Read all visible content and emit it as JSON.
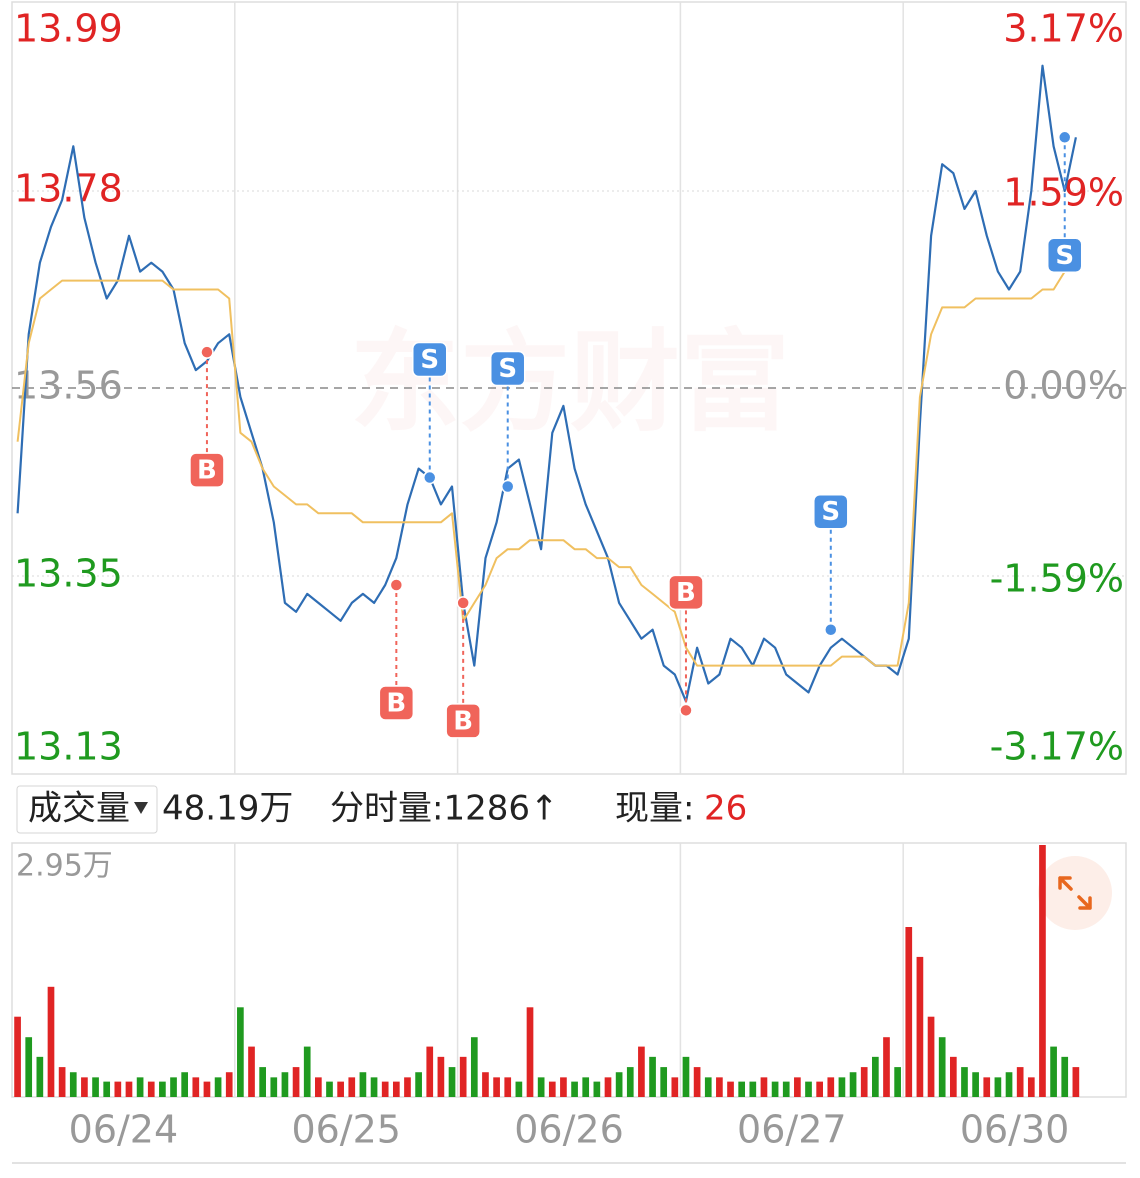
{
  "chart_data": [
    {
      "type": "line",
      "watermark": "东方财富",
      "ylim": [
        13.13,
        13.99
      ],
      "yticks": [
        13.99,
        13.78,
        13.56,
        13.35,
        13.13
      ],
      "y2lim": [
        -3.17,
        3.17
      ],
      "y2ticks": [
        {
          "value": 3.17,
          "label": "3.17%"
        },
        {
          "value": 1.59,
          "label": "1.59%"
        },
        {
          "value": 0,
          "label": "0.00%"
        },
        {
          "value": -1.59,
          "label": "-1.59%"
        },
        {
          "value": -3.17,
          "label": "-3.17%"
        }
      ],
      "up_color": "#e02424",
      "down_color": "#1f9a1f",
      "flat_color": "#999999",
      "series": [
        {
          "color": "#2e6db4",
          "values": [
            13.42,
            13.62,
            13.7,
            13.74,
            13.77,
            13.83,
            13.75,
            13.7,
            13.66,
            13.68,
            13.73,
            13.69,
            13.7,
            13.69,
            13.67,
            13.61,
            13.58,
            13.59,
            13.61,
            13.62,
            13.55,
            13.51,
            13.47,
            13.41,
            13.32,
            13.31,
            13.33,
            13.32,
            13.31,
            13.3,
            13.32,
            13.33,
            13.32,
            13.34,
            13.37,
            13.43,
            13.47,
            13.46,
            13.43,
            13.45,
            13.32,
            13.25,
            13.37,
            13.41,
            13.47,
            13.48,
            13.43,
            13.38,
            13.51,
            13.54,
            13.47,
            13.43,
            13.4,
            13.37,
            13.32,
            13.3,
            13.28,
            13.29,
            13.25,
            13.24,
            13.21,
            13.27,
            13.23,
            13.24,
            13.28,
            13.27,
            13.25,
            13.28,
            13.27,
            13.24,
            13.23,
            13.22,
            13.25,
            13.27,
            13.28,
            13.27,
            13.26,
            13.25,
            13.25,
            13.24,
            13.28,
            13.52,
            13.73,
            13.81,
            13.8,
            13.76,
            13.78,
            13.73,
            13.69,
            13.67,
            13.69,
            13.78,
            13.92,
            13.83,
            13.78,
            13.84,
            null,
            null,
            null,
            null
          ]
        },
        {
          "color": "#f0c060",
          "values": [
            13.5,
            13.61,
            13.66,
            13.67,
            13.68,
            13.68,
            13.68,
            13.68,
            13.68,
            13.68,
            13.68,
            13.68,
            13.68,
            13.68,
            13.67,
            13.67,
            13.67,
            13.67,
            13.67,
            13.66,
            13.51,
            13.5,
            13.47,
            13.45,
            13.44,
            13.43,
            13.43,
            13.42,
            13.42,
            13.42,
            13.42,
            13.41,
            13.41,
            13.41,
            13.41,
            13.41,
            13.41,
            13.41,
            13.41,
            13.42,
            13.3,
            13.32,
            13.34,
            13.37,
            13.38,
            13.38,
            13.39,
            13.39,
            13.39,
            13.39,
            13.38,
            13.38,
            13.37,
            13.37,
            13.36,
            13.36,
            13.34,
            13.33,
            13.32,
            13.31,
            13.27,
            13.25,
            13.25,
            13.25,
            13.25,
            13.25,
            13.25,
            13.25,
            13.25,
            13.25,
            13.25,
            13.25,
            13.25,
            13.25,
            13.26,
            13.26,
            13.26,
            13.25,
            13.25,
            13.25,
            13.32,
            13.55,
            13.62,
            13.65,
            13.65,
            13.65,
            13.66,
            13.66,
            13.66,
            13.66,
            13.66,
            13.66,
            13.67,
            13.67,
            13.69,
            13.7,
            null,
            null,
            null,
            null
          ]
        }
      ],
      "annotations": [
        {
          "text": "B",
          "index": 17,
          "value": 13.6,
          "color": "#f0645a",
          "side": "below"
        },
        {
          "text": "B",
          "index": 34,
          "value": 13.34,
          "color": "#f0645a",
          "side": "below"
        },
        {
          "text": "S",
          "index": 37,
          "value": 13.46,
          "color": "#4a90e2",
          "side": "above"
        },
        {
          "text": "B",
          "index": 40,
          "value": 13.32,
          "color": "#f0645a",
          "side": "below"
        },
        {
          "text": "S",
          "index": 44,
          "value": 13.45,
          "color": "#4a90e2",
          "side": "above"
        },
        {
          "text": "B",
          "index": 60,
          "value": 13.2,
          "color": "#f0645a",
          "side": "above"
        },
        {
          "text": "S",
          "index": 73,
          "value": 13.29,
          "color": "#4a90e2",
          "side": "above"
        },
        {
          "text": "S",
          "index": 94,
          "value": 13.84,
          "color": "#4a90e2",
          "side": "below"
        }
      ]
    },
    {
      "type": "bar",
      "header": {
        "label": "成交量",
        "total": "48.19万",
        "period": "分时量:1286↑",
        "current_label": "现量:",
        "current": "26"
      },
      "day_labels": [
        "06/24",
        "06/25",
        "06/26",
        "06/27",
        "06/30"
      ],
      "ylim": [
        0,
        2.95
      ],
      "yticks": [
        {
          "value": 2.95,
          "label": "2.95万"
        }
      ],
      "values": [
        0.94,
        0.7,
        0.47,
        1.29,
        0.35,
        0.29,
        0.23,
        0.23,
        0.18,
        0.18,
        0.18,
        0.23,
        0.18,
        0.18,
        0.23,
        0.29,
        0.23,
        0.18,
        0.23,
        0.29,
        1.05,
        0.59,
        0.35,
        0.23,
        0.29,
        0.35,
        0.59,
        0.23,
        0.18,
        0.18,
        0.23,
        0.29,
        0.23,
        0.18,
        0.18,
        0.23,
        0.29,
        0.59,
        0.47,
        0.35,
        0.47,
        0.7,
        0.29,
        0.23,
        0.23,
        0.18,
        1.05,
        0.23,
        0.18,
        0.23,
        0.18,
        0.23,
        0.18,
        0.23,
        0.29,
        0.35,
        0.59,
        0.47,
        0.35,
        0.23,
        0.47,
        0.35,
        0.23,
        0.23,
        0.18,
        0.18,
        0.18,
        0.23,
        0.18,
        0.18,
        0.23,
        0.18,
        0.18,
        0.23,
        0.23,
        0.29,
        0.35,
        0.47,
        0.7,
        0.35,
        1.99,
        1.64,
        0.94,
        0.7,
        0.47,
        0.35,
        0.29,
        0.23,
        0.23,
        0.29,
        0.35,
        0.23,
        2.95,
        0.59,
        0.47,
        0.35,
        null,
        null,
        null,
        null
      ],
      "colors": [
        "#e02424",
        "#1f9a1f",
        "#1f9a1f",
        "#e02424",
        "#e02424",
        "#1f9a1f",
        "#e02424",
        "#1f9a1f",
        "#1f9a1f",
        "#e02424",
        "#e02424",
        "#1f9a1f",
        "#e02424",
        "#1f9a1f",
        "#1f9a1f",
        "#1f9a1f",
        "#e02424",
        "#e02424",
        "#1f9a1f",
        "#e02424",
        "#1f9a1f",
        "#e02424",
        "#1f9a1f",
        "#1f9a1f",
        "#1f9a1f",
        "#e02424",
        "#1f9a1f",
        "#e02424",
        "#1f9a1f",
        "#e02424",
        "#e02424",
        "#1f9a1f",
        "#1f9a1f",
        "#e02424",
        "#e02424",
        "#e02424",
        "#1f9a1f",
        "#e02424",
        "#e02424",
        "#1f9a1f",
        "#e02424",
        "#1f9a1f",
        "#e02424",
        "#e02424",
        "#e02424",
        "#1f9a1f",
        "#e02424",
        "#1f9a1f",
        "#e02424",
        "#e02424",
        "#1f9a1f",
        "#1f9a1f",
        "#1f9a1f",
        "#e02424",
        "#1f9a1f",
        "#1f9a1f",
        "#e02424",
        "#1f9a1f",
        "#1f9a1f",
        "#e02424",
        "#1f9a1f",
        "#e02424",
        "#1f9a1f",
        "#e02424",
        "#e02424",
        "#1f9a1f",
        "#1f9a1f",
        "#e02424",
        "#1f9a1f",
        "#1f9a1f",
        "#e02424",
        "#1f9a1f",
        "#e02424",
        "#e02424",
        "#1f9a1f",
        "#1f9a1f",
        "#e02424",
        "#1f9a1f",
        "#e02424",
        "#1f9a1f",
        "#e02424",
        "#e02424",
        "#e02424",
        "#1f9a1f",
        "#e02424",
        "#1f9a1f",
        "#1f9a1f",
        "#e02424",
        "#1f9a1f",
        "#1f9a1f",
        "#e02424",
        "#e02424",
        "#e02424",
        "#1f9a1f",
        "#1f9a1f",
        "#e02424",
        "#1f9a1f",
        "#1f9a1f",
        "#1f9a1f",
        "#1f9a1f"
      ]
    }
  ]
}
